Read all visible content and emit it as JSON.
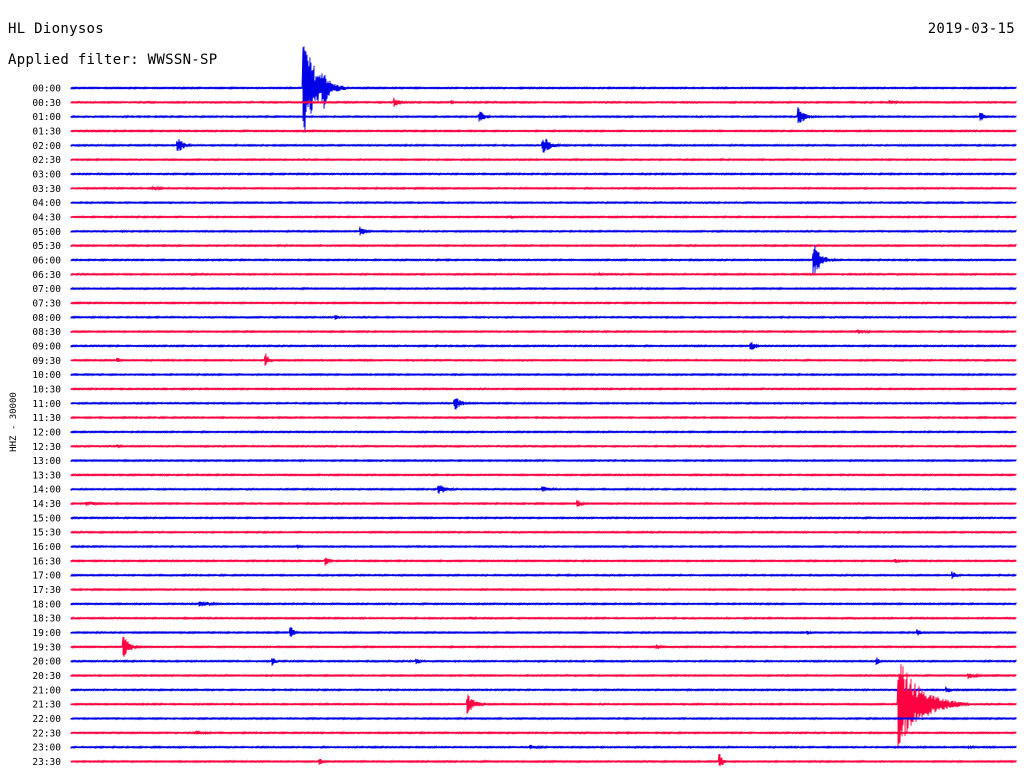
{
  "header": {
    "station": "HL Dionysos",
    "date": "2019-03-15",
    "filter": "Applied filter: WWSSN-SP",
    "channel": "HHZ - 30000"
  },
  "colors": {
    "even_trace": "#0000e6",
    "odd_trace": "#ff0040"
  },
  "chart_data": {
    "type": "helicorder",
    "title": "HL Dionysos",
    "date": "2019-03-15",
    "filter": "WWSSN-SP",
    "ylabel": "HHZ - 30000",
    "row_minutes": 30,
    "x_range_minutes": [
      0,
      30
    ],
    "grid": false,
    "rows": [
      {
        "time": "00:00",
        "events": [
          {
            "min": 7.4,
            "amp": 50,
            "dur": 1.3
          },
          {
            "min": 8.0,
            "amp": 25,
            "dur": 0.6
          }
        ]
      },
      {
        "time": "00:30",
        "events": [
          {
            "min": 10.3,
            "amp": 5,
            "dur": 0.5
          },
          {
            "min": 12.1,
            "amp": 2,
            "dur": 0.3
          },
          {
            "min": 26.0,
            "amp": 2,
            "dur": 1.2
          }
        ]
      },
      {
        "time": "01:00",
        "events": [
          {
            "min": 13.0,
            "amp": 6,
            "dur": 0.5
          },
          {
            "min": 23.1,
            "amp": 10,
            "dur": 0.6
          },
          {
            "min": 28.9,
            "amp": 5,
            "dur": 0.4
          }
        ]
      },
      {
        "time": "01:30",
        "events": []
      },
      {
        "time": "02:00",
        "events": [
          {
            "min": 3.4,
            "amp": 8,
            "dur": 0.6
          },
          {
            "min": 15.0,
            "amp": 9,
            "dur": 0.8
          }
        ]
      },
      {
        "time": "02:30",
        "events": []
      },
      {
        "time": "03:00",
        "events": []
      },
      {
        "time": "03:30",
        "events": [
          {
            "min": 2.6,
            "amp": 2,
            "dur": 1.0
          }
        ]
      },
      {
        "time": "04:00",
        "events": []
      },
      {
        "time": "04:30",
        "events": [
          {
            "min": 14.0,
            "amp": 2,
            "dur": 0.3
          }
        ]
      },
      {
        "time": "05:00",
        "events": [
          {
            "min": 9.2,
            "amp": 5,
            "dur": 0.5
          }
        ]
      },
      {
        "time": "05:30",
        "events": []
      },
      {
        "time": "06:00",
        "events": [
          {
            "min": 23.6,
            "amp": 18,
            "dur": 0.7
          }
        ]
      },
      {
        "time": "06:30",
        "events": [
          {
            "min": 16.8,
            "amp": 2,
            "dur": 0.3
          }
        ]
      },
      {
        "time": "07:00",
        "events": []
      },
      {
        "time": "07:30",
        "events": []
      },
      {
        "time": "08:00",
        "events": [
          {
            "min": 8.4,
            "amp": 3,
            "dur": 0.5
          }
        ]
      },
      {
        "time": "08:30",
        "events": [
          {
            "min": 25.0,
            "amp": 2,
            "dur": 1.5
          }
        ]
      },
      {
        "time": "09:00",
        "events": [
          {
            "min": 21.6,
            "amp": 5,
            "dur": 0.5
          }
        ]
      },
      {
        "time": "09:30",
        "events": [
          {
            "min": 1.5,
            "amp": 3,
            "dur": 0.4
          },
          {
            "min": 6.2,
            "amp": 7,
            "dur": 0.3
          }
        ]
      },
      {
        "time": "10:00",
        "events": []
      },
      {
        "time": "10:30",
        "events": []
      },
      {
        "time": "11:00",
        "events": [
          {
            "min": 12.2,
            "amp": 7,
            "dur": 0.7
          }
        ]
      },
      {
        "time": "11:30",
        "events": []
      },
      {
        "time": "12:00",
        "events": []
      },
      {
        "time": "12:30",
        "events": [
          {
            "min": 1.5,
            "amp": 2,
            "dur": 0.4
          }
        ]
      },
      {
        "time": "13:00",
        "events": []
      },
      {
        "time": "13:30",
        "events": []
      },
      {
        "time": "14:00",
        "events": [
          {
            "min": 11.7,
            "amp": 5,
            "dur": 1.0
          },
          {
            "min": 15.0,
            "amp": 3,
            "dur": 1.0
          }
        ]
      },
      {
        "time": "14:30",
        "events": [
          {
            "min": 0.5,
            "amp": 3,
            "dur": 1.0
          },
          {
            "min": 16.1,
            "amp": 4,
            "dur": 0.4
          }
        ]
      },
      {
        "time": "15:00",
        "events": []
      },
      {
        "time": "15:30",
        "events": []
      },
      {
        "time": "16:00",
        "events": [
          {
            "min": 7.2,
            "amp": 2,
            "dur": 0.3
          }
        ]
      },
      {
        "time": "16:30",
        "events": [
          {
            "min": 8.1,
            "amp": 5,
            "dur": 0.4
          },
          {
            "min": 26.2,
            "amp": 2,
            "dur": 0.6
          }
        ]
      },
      {
        "time": "17:00",
        "events": [
          {
            "min": 28.0,
            "amp": 4,
            "dur": 0.4
          }
        ]
      },
      {
        "time": "17:30",
        "events": []
      },
      {
        "time": "18:00",
        "events": [
          {
            "min": 4.1,
            "amp": 3,
            "dur": 1.5
          }
        ]
      },
      {
        "time": "18:30",
        "events": [
          {
            "min": 12.7,
            "amp": 2,
            "dur": 0.5
          }
        ]
      },
      {
        "time": "19:00",
        "events": [
          {
            "min": 7.0,
            "amp": 6,
            "dur": 0.3
          },
          {
            "min": 23.4,
            "amp": 3,
            "dur": 0.3
          },
          {
            "min": 26.9,
            "amp": 4,
            "dur": 0.3
          }
        ]
      },
      {
        "time": "19:30",
        "events": [
          {
            "min": 1.7,
            "amp": 11,
            "dur": 0.6
          },
          {
            "min": 18.6,
            "amp": 3,
            "dur": 0.4
          }
        ]
      },
      {
        "time": "20:00",
        "events": [
          {
            "min": 6.4,
            "amp": 5,
            "dur": 0.3
          },
          {
            "min": 11.0,
            "amp": 3,
            "dur": 0.3
          },
          {
            "min": 25.6,
            "amp": 4,
            "dur": 0.3
          }
        ]
      },
      {
        "time": "20:30",
        "events": [
          {
            "min": 28.5,
            "amp": 4,
            "dur": 0.7
          }
        ]
      },
      {
        "time": "21:00",
        "events": [
          {
            "min": 27.8,
            "amp": 4,
            "dur": 0.5
          }
        ]
      },
      {
        "time": "21:30",
        "events": [
          {
            "min": 12.6,
            "amp": 10,
            "dur": 0.7
          },
          {
            "min": 26.3,
            "amp": 45,
            "dur": 2.2
          }
        ]
      },
      {
        "time": "22:00",
        "events": []
      },
      {
        "time": "22:30",
        "events": [
          {
            "min": 4.0,
            "amp": 3,
            "dur": 1.0
          }
        ]
      },
      {
        "time": "23:00",
        "events": [
          {
            "min": 14.6,
            "amp": 3,
            "dur": 0.8
          },
          {
            "min": 28.5,
            "amp": 2,
            "dur": 0.5
          }
        ]
      },
      {
        "time": "23:30",
        "events": [
          {
            "min": 7.9,
            "amp": 4,
            "dur": 0.3
          },
          {
            "min": 20.6,
            "amp": 9,
            "dur": 0.3
          }
        ]
      }
    ]
  }
}
